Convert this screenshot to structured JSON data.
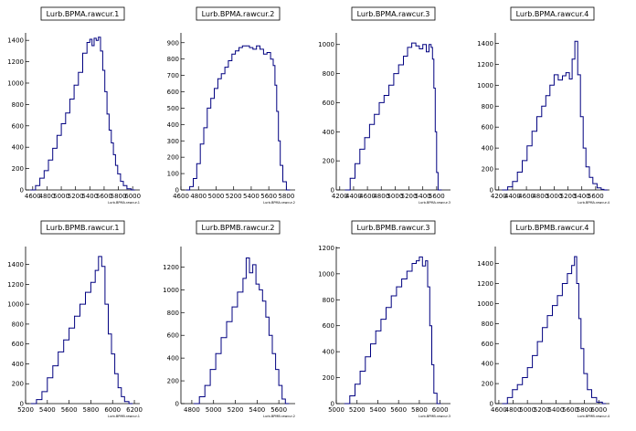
{
  "colors": {
    "line": "#000080",
    "axis": "#000000",
    "background": "#ffffff"
  },
  "chart_data": [
    {
      "type": "line",
      "title": "Lurb.BPMA.rawcur.1",
      "xlabel": "Lurb.BPMA.rawcur.1",
      "xlim": [
        4500,
        6100
      ],
      "ylim": [
        0,
        1470
      ],
      "xticks": [
        4600,
        4800,
        5000,
        5200,
        5400,
        5600,
        5800,
        6000
      ],
      "yticks": [
        0,
        200,
        400,
        600,
        800,
        1000,
        1200,
        1400
      ],
      "x": [
        4570,
        4640,
        4700,
        4760,
        4820,
        4880,
        4940,
        5000,
        5060,
        5120,
        5180,
        5240,
        5300,
        5360,
        5400,
        5430,
        5460,
        5490,
        5520,
        5550,
        5580,
        5610,
        5640,
        5670,
        5700,
        5730,
        5760,
        5790,
        5830,
        5870,
        5920,
        5980
      ],
      "y": [
        0,
        40,
        110,
        180,
        280,
        390,
        510,
        620,
        720,
        850,
        980,
        1100,
        1280,
        1380,
        1410,
        1350,
        1420,
        1400,
        1430,
        1300,
        1120,
        920,
        710,
        560,
        440,
        330,
        230,
        150,
        80,
        40,
        10,
        0
      ]
    },
    {
      "type": "line",
      "title": "Lurb.BPMA.rawcur.2",
      "xlabel": "Lurb.BPMA.rawcur.2",
      "xlim": [
        4600,
        5900
      ],
      "ylim": [
        0,
        960
      ],
      "xticks": [
        4600,
        4800,
        5000,
        5200,
        5400,
        5600,
        5800
      ],
      "yticks": [
        0,
        100,
        200,
        300,
        400,
        500,
        600,
        700,
        800,
        900
      ],
      "x": [
        4660,
        4700,
        4740,
        4780,
        4820,
        4860,
        4900,
        4940,
        4980,
        5020,
        5060,
        5100,
        5140,
        5180,
        5220,
        5260,
        5300,
        5340,
        5380,
        5420,
        5460,
        5500,
        5540,
        5580,
        5620,
        5650,
        5670,
        5690,
        5710,
        5730,
        5760,
        5800
      ],
      "y": [
        0,
        20,
        70,
        160,
        280,
        380,
        500,
        560,
        620,
        680,
        710,
        750,
        790,
        830,
        850,
        870,
        880,
        880,
        870,
        860,
        880,
        860,
        830,
        840,
        800,
        760,
        640,
        480,
        300,
        150,
        50,
        0
      ]
    },
    {
      "type": "line",
      "title": "Lurb.BPMA.rawcur.3",
      "xlabel": "Lurb.BPMA.rawcur.3",
      "xlim": [
        4150,
        5800
      ],
      "ylim": [
        0,
        1080
      ],
      "xticks": [
        4200,
        4400,
        4600,
        4800,
        5000,
        5200,
        5400,
        5600
      ],
      "yticks": [
        0,
        200,
        400,
        600,
        800,
        1000
      ],
      "x": [
        4280,
        4350,
        4420,
        4490,
        4560,
        4630,
        4700,
        4770,
        4840,
        4910,
        4980,
        5050,
        5120,
        5180,
        5240,
        5300,
        5350,
        5400,
        5450,
        5490,
        5520,
        5540,
        5560,
        5580,
        5600,
        5620
      ],
      "y": [
        0,
        80,
        180,
        280,
        360,
        450,
        520,
        600,
        650,
        720,
        800,
        860,
        920,
        980,
        1010,
        990,
        970,
        1000,
        950,
        1000,
        980,
        900,
        700,
        400,
        120,
        0
      ]
    },
    {
      "type": "line",
      "title": "Lurb.BPMA.rawcur.4",
      "xlabel": "Lurb.BPMA.rawcur.4",
      "xlim": [
        4150,
        5800
      ],
      "ylim": [
        0,
        1500
      ],
      "xticks": [
        4200,
        4400,
        4600,
        4800,
        5000,
        5200,
        5400,
        5600
      ],
      "yticks": [
        0,
        200,
        400,
        600,
        800,
        1000,
        1200,
        1400
      ],
      "x": [
        4250,
        4330,
        4400,
        4470,
        4540,
        4610,
        4680,
        4750,
        4820,
        4880,
        4940,
        5000,
        5060,
        5120,
        5170,
        5220,
        5260,
        5300,
        5340,
        5380,
        5420,
        5460,
        5510,
        5560,
        5620,
        5680,
        5720
      ],
      "y": [
        0,
        30,
        80,
        170,
        280,
        420,
        560,
        700,
        800,
        900,
        1000,
        1100,
        1050,
        1090,
        1120,
        1060,
        1250,
        1420,
        1100,
        700,
        400,
        220,
        120,
        60,
        20,
        5,
        0
      ]
    },
    {
      "type": "line",
      "title": "Lurb.BPMB.rawcur.1",
      "xlabel": "Lurb.BPMB.rawcur.1",
      "xlim": [
        5200,
        6250
      ],
      "ylim": [
        0,
        1580
      ],
      "xticks": [
        5200,
        5400,
        5600,
        5800,
        6000,
        6200
      ],
      "yticks": [
        0,
        200,
        400,
        600,
        800,
        1000,
        1200,
        1400
      ],
      "x": [
        5250,
        5300,
        5350,
        5400,
        5450,
        5500,
        5550,
        5600,
        5650,
        5700,
        5750,
        5800,
        5840,
        5870,
        5900,
        5930,
        5960,
        5990,
        6020,
        6050,
        6080,
        6110,
        6150
      ],
      "y": [
        0,
        40,
        120,
        260,
        380,
        520,
        640,
        760,
        880,
        1000,
        1120,
        1220,
        1340,
        1480,
        1380,
        1000,
        700,
        500,
        300,
        160,
        70,
        20,
        0
      ]
    },
    {
      "type": "line",
      "title": "Lurb.BPMB.rawcur.2",
      "xlabel": "Lurb.BPMB.rawcur.2",
      "xlim": [
        4700,
        5750
      ],
      "ylim": [
        0,
        1380
      ],
      "xticks": [
        4800,
        5000,
        5200,
        5400,
        5600
      ],
      "yticks": [
        0,
        200,
        400,
        600,
        800,
        1000,
        1200
      ],
      "x": [
        4820,
        4870,
        4920,
        4970,
        5020,
        5070,
        5120,
        5170,
        5220,
        5270,
        5300,
        5330,
        5360,
        5390,
        5420,
        5450,
        5480,
        5510,
        5540,
        5570,
        5600,
        5630,
        5660
      ],
      "y": [
        0,
        60,
        160,
        300,
        440,
        580,
        720,
        850,
        980,
        1100,
        1280,
        1150,
        1220,
        1050,
        1000,
        900,
        760,
        600,
        440,
        300,
        160,
        40,
        0
      ]
    },
    {
      "type": "line",
      "title": "Lurb.BPMB.rawcur.3",
      "xlabel": "Lurb.BPMB.rawcur.3",
      "xlim": [
        5000,
        6100
      ],
      "ylim": [
        0,
        1210
      ],
      "xticks": [
        5000,
        5200,
        5400,
        5600,
        5800,
        6000
      ],
      "yticks": [
        0,
        200,
        400,
        600,
        800,
        1000,
        1200
      ],
      "x": [
        5080,
        5130,
        5180,
        5230,
        5280,
        5330,
        5380,
        5430,
        5480,
        5530,
        5580,
        5630,
        5680,
        5730,
        5770,
        5800,
        5830,
        5860,
        5880,
        5900,
        5920,
        5940,
        5970
      ],
      "y": [
        0,
        60,
        150,
        250,
        360,
        460,
        560,
        650,
        740,
        830,
        900,
        960,
        1020,
        1080,
        1100,
        1130,
        1060,
        1100,
        900,
        600,
        300,
        80,
        0
      ]
    },
    {
      "type": "line",
      "title": "Lurb.BPMB.rawcur.4",
      "xlabel": "Lurb.BPMB.rawcur.4",
      "xlim": [
        4550,
        6150
      ],
      "ylim": [
        0,
        1570
      ],
      "xticks": [
        4600,
        4800,
        5000,
        5200,
        5400,
        5600,
        5800,
        6000
      ],
      "yticks": [
        0,
        200,
        400,
        600,
        800,
        1000,
        1200,
        1400
      ],
      "x": [
        4650,
        4720,
        4790,
        4860,
        4930,
        5000,
        5070,
        5140,
        5210,
        5280,
        5350,
        5420,
        5490,
        5560,
        5620,
        5660,
        5690,
        5720,
        5750,
        5790,
        5840,
        5900,
        5970,
        6050
      ],
      "y": [
        0,
        60,
        140,
        190,
        260,
        360,
        480,
        620,
        760,
        880,
        980,
        1080,
        1200,
        1300,
        1380,
        1470,
        1200,
        850,
        550,
        300,
        140,
        60,
        15,
        0
      ]
    }
  ]
}
